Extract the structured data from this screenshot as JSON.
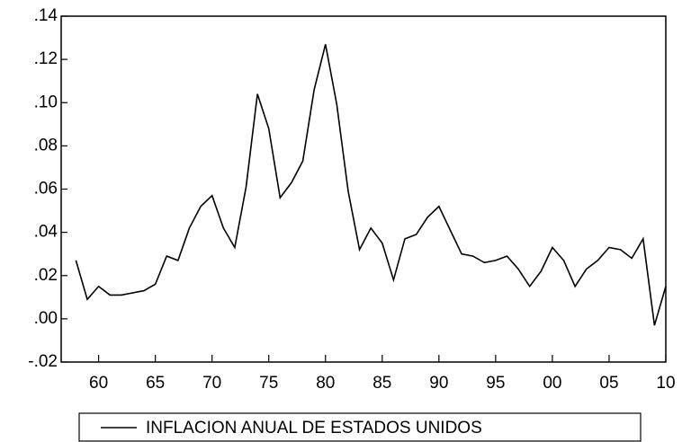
{
  "chart_data": {
    "type": "line",
    "x": [
      1958,
      1959,
      1960,
      1961,
      1962,
      1963,
      1964,
      1965,
      1966,
      1967,
      1968,
      1969,
      1970,
      1971,
      1972,
      1973,
      1974,
      1975,
      1976,
      1977,
      1978,
      1979,
      1980,
      1981,
      1982,
      1983,
      1984,
      1985,
      1986,
      1987,
      1988,
      1989,
      1990,
      1991,
      1992,
      1993,
      1994,
      1995,
      1996,
      1997,
      1998,
      1999,
      2000,
      2001,
      2002,
      2003,
      2004,
      2005,
      2006,
      2007,
      2008,
      2009,
      2010
    ],
    "series": [
      {
        "name": "INFLACION ANUAL DE ESTADOS UNIDOS",
        "color": "#000000",
        "values": [
          0.027,
          0.009,
          0.015,
          0.011,
          0.011,
          0.012,
          0.013,
          0.016,
          0.029,
          0.027,
          0.042,
          0.052,
          0.057,
          0.042,
          0.033,
          0.061,
          0.104,
          0.088,
          0.056,
          0.063,
          0.073,
          0.106,
          0.127,
          0.099,
          0.059,
          0.032,
          0.042,
          0.035,
          0.018,
          0.037,
          0.039,
          0.047,
          0.052,
          0.041,
          0.03,
          0.029,
          0.026,
          0.027,
          0.029,
          0.023,
          0.015,
          0.022,
          0.033,
          0.027,
          0.015,
          0.023,
          0.027,
          0.033,
          0.032,
          0.028,
          0.037,
          -0.003,
          0.015
        ]
      }
    ],
    "xlim": [
      1956.7,
      2010
    ],
    "xticks": [
      {
        "value": 1960,
        "label": "60"
      },
      {
        "value": 1965,
        "label": "65"
      },
      {
        "value": 1970,
        "label": "70"
      },
      {
        "value": 1975,
        "label": "75"
      },
      {
        "value": 1980,
        "label": "80"
      },
      {
        "value": 1985,
        "label": "85"
      },
      {
        "value": 1990,
        "label": "90"
      },
      {
        "value": 1995,
        "label": "95"
      },
      {
        "value": 2000,
        "label": "00"
      },
      {
        "value": 2005,
        "label": "05"
      },
      {
        "value": 2010,
        "label": "10"
      }
    ],
    "ylim": [
      -0.02,
      0.14
    ],
    "yticks": [
      {
        "value": -0.02,
        "label": "-.02"
      },
      {
        "value": 0,
        "label": ".00"
      },
      {
        "value": 0.02,
        "label": ".02"
      },
      {
        "value": 0.04,
        "label": ".04"
      },
      {
        "value": 0.06,
        "label": ".06"
      },
      {
        "value": 0.08,
        "label": ".08"
      },
      {
        "value": 0.1,
        "label": ".10"
      },
      {
        "value": 0.12,
        "label": ".12"
      },
      {
        "value": 0.14,
        "label": ".14"
      }
    ],
    "legend": "bottom"
  }
}
